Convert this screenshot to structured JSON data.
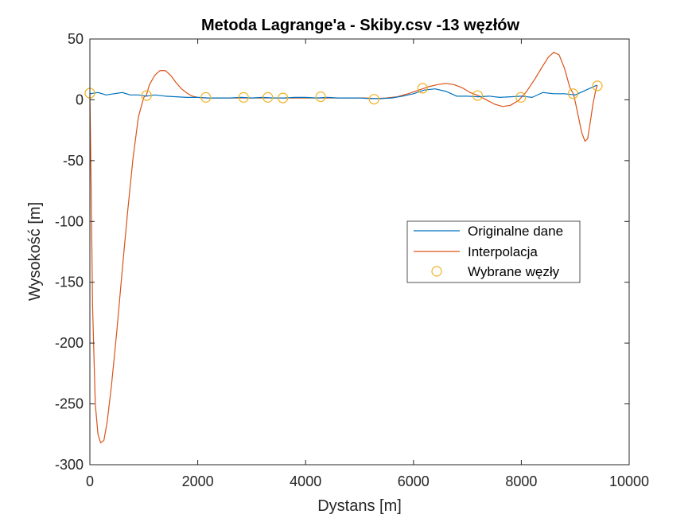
{
  "chart_data": {
    "type": "line",
    "title": "Metoda Lagrange'a - Skiby.csv -13 węzłów",
    "xlabel": "Dystans [m]",
    "ylabel": "Wysokość [m]",
    "xlim": [
      0,
      10000
    ],
    "ylim": [
      -300,
      50
    ],
    "xticks": [
      0,
      2000,
      4000,
      6000,
      8000,
      10000
    ],
    "yticks": [
      -300,
      -250,
      -200,
      -150,
      -100,
      -50,
      0,
      50
    ],
    "xtick_labels": [
      "0",
      "2000",
      "4000",
      "6000",
      "8000",
      "10000"
    ],
    "ytick_labels": [
      "-300",
      "-250",
      "-200",
      "-150",
      "-100",
      "-50",
      "0",
      "50"
    ],
    "grid": false,
    "legend_position": "right",
    "series": [
      {
        "name": "Originalne dane",
        "style": "line",
        "color": "#0072BD",
        "x": [
          0,
          150,
          300,
          450,
          600,
          750,
          900,
          1050,
          1200,
          1400,
          1600,
          1800,
          2000,
          2200,
          2400,
          2600,
          2800,
          3000,
          3200,
          3400,
          3600,
          3800,
          4000,
          4200,
          4400,
          4600,
          4800,
          5000,
          5200,
          5400,
          5600,
          5800,
          6000,
          6200,
          6400,
          6600,
          6800,
          7000,
          7200,
          7400,
          7600,
          7800,
          8000,
          8200,
          8400,
          8600,
          8800,
          9000,
          9200,
          9400
        ],
        "y": [
          5,
          6,
          4,
          5,
          6,
          4,
          4,
          3,
          4,
          3,
          2.5,
          2,
          2,
          1.5,
          1.5,
          1.5,
          2,
          1.5,
          2,
          1.5,
          1.5,
          2,
          2,
          1.5,
          2,
          1.5,
          1.5,
          1.5,
          1,
          1,
          1.5,
          3,
          5,
          8,
          9,
          7,
          3,
          3,
          2.5,
          3,
          2,
          2.5,
          3,
          2,
          6,
          5,
          5,
          4,
          8,
          12
        ]
      },
      {
        "name": "Interpolacja",
        "style": "line",
        "color": "#D95319",
        "x": [
          0,
          20,
          50,
          100,
          150,
          200,
          260,
          320,
          400,
          500,
          600,
          700,
          800,
          900,
          1000,
          1050,
          1100,
          1200,
          1300,
          1400,
          1500,
          1600,
          1700,
          1800,
          1900,
          2000,
          2150,
          2300,
          2500,
          2700,
          2900,
          3100,
          3300,
          3500,
          3700,
          3900,
          4100,
          4300,
          4500,
          4700,
          4900,
          5100,
          5300,
          5500,
          5700,
          5900,
          6100,
          6200,
          6300,
          6450,
          6600,
          6750,
          6900,
          7050,
          7200,
          7350,
          7500,
          7650,
          7800,
          7950,
          8000,
          8100,
          8250,
          8400,
          8500,
          8600,
          8700,
          8800,
          8900,
          8970,
          9050,
          9120,
          9180,
          9230,
          9280,
          9330,
          9380,
          9410
        ],
        "y": [
          5,
          -60,
          -170,
          -250,
          -275,
          -282,
          -280,
          -265,
          -235,
          -190,
          -140,
          -92,
          -48,
          -14,
          2,
          4,
          12,
          20,
          24,
          24,
          20,
          14,
          9,
          5.5,
          3,
          2,
          1.5,
          1.5,
          1.5,
          1.5,
          1.5,
          1.5,
          1.5,
          1.5,
          1.5,
          1.5,
          1.5,
          1.5,
          1.5,
          1.5,
          1.5,
          1.5,
          1,
          1.5,
          2.5,
          5,
          8,
          9.5,
          11,
          12.5,
          13.5,
          12.5,
          10,
          6,
          3.5,
          0,
          -3.5,
          -5.5,
          -4.5,
          -0.5,
          2,
          7,
          17,
          28,
          35,
          39,
          37,
          26,
          10,
          4.5,
          -12,
          -27,
          -34,
          -32,
          -18,
          -3,
          8,
          12
        ]
      },
      {
        "name": "Wybrane węzły",
        "style": "markers",
        "color": "#EDB120",
        "x": [
          0,
          1050,
          2150,
          2850,
          3300,
          3580,
          4280,
          5270,
          6170,
          7190,
          7990,
          8960,
          9410
        ],
        "y": [
          5.5,
          3.5,
          2,
          2,
          2,
          1.5,
          2.5,
          0.5,
          9.5,
          3.5,
          2,
          5,
          11.5
        ]
      }
    ]
  }
}
